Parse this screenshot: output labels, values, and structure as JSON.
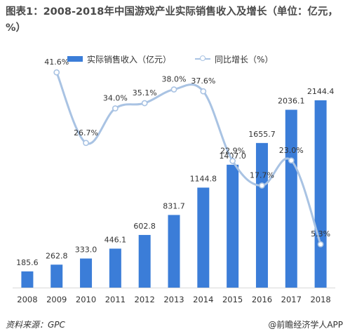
{
  "title": "图表1：2008-2018年中国游戏产业实际销售收入及增长（单位：亿元，%）",
  "source": "资料来源：GPC",
  "brand": "@前瞻经济学人APP",
  "colors": {
    "bar": "#3b7dd8",
    "line": "#a9c3e3"
  },
  "chart_data": {
    "type": "bar+line",
    "categories": [
      "2008",
      "2009",
      "2010",
      "2011",
      "2012",
      "2013",
      "2014",
      "2015",
      "2016",
      "2017",
      "2018"
    ],
    "series": [
      {
        "name": "实际销售收入（亿元）",
        "type": "bar",
        "values": [
          185.6,
          262.8,
          333.0,
          446.1,
          602.8,
          831.7,
          1144.8,
          1407.0,
          1655.7,
          2036.1,
          2144.4
        ],
        "labels": [
          "185.6",
          "262.8",
          "333.0",
          "446.1",
          "602.8",
          "831.7",
          "1144.8",
          "1407.0",
          "1655.7",
          "2036.1",
          "2144.4"
        ]
      },
      {
        "name": "同比增长（%）",
        "type": "line",
        "values": [
          null,
          41.6,
          26.7,
          34.0,
          35.1,
          38.0,
          37.6,
          22.9,
          17.7,
          23.0,
          5.3
        ],
        "labels": [
          "",
          "41.6%",
          "26.7%",
          "34.0%",
          "35.1%",
          "38.0%",
          "37.6%",
          "22.9%",
          "17.7%",
          "23.0%",
          "5.3%"
        ]
      }
    ],
    "legend_position": "top",
    "grid": false
  }
}
